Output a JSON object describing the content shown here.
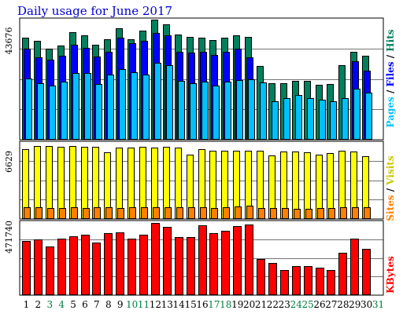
{
  "title": "Daily usage for June 2017",
  "colors": {
    "hits": "#00805c",
    "files": "#0000ff",
    "pages": "#00c0ff",
    "visits": "#ffff00",
    "sites": "#ff8000",
    "kbytes": "#ff0000",
    "weekend_label": "#008040",
    "weekday_label": "#000000",
    "grid": "#000000"
  },
  "chart_data": [
    {
      "type": "bar",
      "panel": "hits-files-pages",
      "max_label": "43676",
      "legend": [
        "Pages",
        "Files",
        "Hits"
      ],
      "legend_separator": "/",
      "categories": [
        "1",
        "2",
        "3",
        "4",
        "5",
        "6",
        "7",
        "8",
        "9",
        "10",
        "11",
        "12",
        "13",
        "14",
        "15",
        "16",
        "17",
        "18",
        "19",
        "20",
        "21",
        "22",
        "23",
        "24",
        "25",
        "26",
        "27",
        "28",
        "29",
        "30",
        "31"
      ],
      "weekend_days": [
        "3",
        "4",
        "10",
        "11",
        "17",
        "18",
        "24",
        "25",
        "31"
      ],
      "ylim": [
        0,
        43676
      ],
      "series": [
        {
          "name": "Hits",
          "values": [
            38200,
            37000,
            33900,
            35100,
            40100,
            39100,
            35600,
            37500,
            41700,
            37500,
            40800,
            44900,
            43000,
            39400,
            38400,
            38000,
            37100,
            38000,
            39000,
            38500,
            27500,
            21100,
            21100,
            22000,
            22000,
            20600,
            20800,
            27800,
            32800,
            31400,
            0
          ]
        },
        {
          "name": "Files",
          "values": [
            34000,
            30800,
            30000,
            31500,
            35600,
            34400,
            31000,
            32800,
            38000,
            36000,
            36900,
            40000,
            39000,
            32700,
            32600,
            32800,
            31700,
            32700,
            33900,
            30800,
            0,
            0,
            0,
            0,
            0,
            0,
            0,
            0,
            29400,
            25900,
            0
          ]
        },
        {
          "name": "Pages",
          "values": [
            22800,
            21000,
            20300,
            21700,
            25000,
            24900,
            20700,
            24200,
            26400,
            25200,
            24400,
            28800,
            27900,
            21900,
            21100,
            21800,
            20200,
            21800,
            22200,
            22500,
            21400,
            14500,
            15400,
            16700,
            15500,
            14900,
            14400,
            15400,
            19000,
            17500,
            0
          ]
        }
      ]
    },
    {
      "type": "bar",
      "panel": "visits-sites",
      "max_label": "6629",
      "legend": [
        "Sites",
        "Visits"
      ],
      "legend_separator": "/",
      "categories": [
        "1",
        "2",
        "3",
        "4",
        "5",
        "6",
        "7",
        "8",
        "9",
        "10",
        "11",
        "12",
        "13",
        "14",
        "15",
        "16",
        "17",
        "18",
        "19",
        "20",
        "21",
        "22",
        "23",
        "24",
        "25",
        "26",
        "27",
        "28",
        "29",
        "30",
        "31"
      ],
      "ylim": [
        0,
        6629
      ],
      "series": [
        {
          "name": "Visits",
          "values": [
            6350,
            6620,
            6629,
            6560,
            6620,
            6580,
            6560,
            6090,
            6480,
            6460,
            6560,
            6520,
            6560,
            6470,
            5870,
            6330,
            6200,
            6180,
            6180,
            6190,
            6190,
            5740,
            6110,
            6110,
            6050,
            5880,
            5990,
            6200,
            6100,
            5730,
            0
          ]
        },
        {
          "name": "Sites",
          "values": [
            1080,
            1090,
            980,
            1000,
            1080,
            1020,
            1050,
            1050,
            1020,
            1050,
            1050,
            1100,
            1080,
            1050,
            1040,
            1070,
            1010,
            1080,
            1120,
            1180,
            1020,
            1020,
            1010,
            940,
            920,
            1000,
            1010,
            1060,
            1080,
            1040,
            0
          ]
        }
      ]
    },
    {
      "type": "bar",
      "panel": "kbytes",
      "max_label": "471740",
      "legend": [
        "KBytes"
      ],
      "categories": [
        "1",
        "2",
        "3",
        "4",
        "5",
        "6",
        "7",
        "8",
        "9",
        "10",
        "11",
        "12",
        "13",
        "14",
        "15",
        "16",
        "17",
        "18",
        "19",
        "20",
        "21",
        "22",
        "23",
        "24",
        "25",
        "26",
        "27",
        "28",
        "29",
        "30",
        "31"
      ],
      "ylim": [
        0,
        471740
      ],
      "series": [
        {
          "name": "KBytes",
          "values": [
            366000,
            375000,
            329000,
            384000,
            397000,
            407000,
            354000,
            417000,
            425000,
            383000,
            410000,
            486000,
            459000,
            393000,
            392000,
            470000,
            419000,
            433000,
            468000,
            475000,
            245000,
            219000,
            172000,
            195000,
            194000,
            185000,
            170000,
            287000,
            384000,
            313000,
            0
          ]
        }
      ]
    }
  ]
}
